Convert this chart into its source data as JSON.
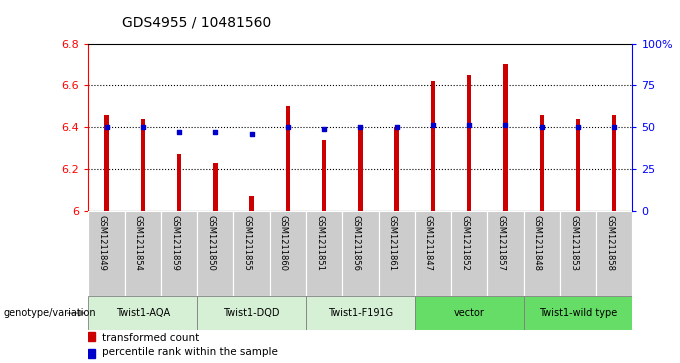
{
  "title": "GDS4955 / 10481560",
  "samples": [
    "GSM1211849",
    "GSM1211854",
    "GSM1211859",
    "GSM1211850",
    "GSM1211855",
    "GSM1211860",
    "GSM1211851",
    "GSM1211856",
    "GSM1211861",
    "GSM1211847",
    "GSM1211852",
    "GSM1211857",
    "GSM1211848",
    "GSM1211853",
    "GSM1211858"
  ],
  "bar_values": [
    6.46,
    6.44,
    6.27,
    6.23,
    6.07,
    6.5,
    6.34,
    6.41,
    6.4,
    6.62,
    6.65,
    6.7,
    6.46,
    6.44,
    6.46
  ],
  "percentile_values": [
    50,
    50,
    47,
    47,
    46,
    50,
    49,
    50,
    50,
    51,
    51,
    51,
    50,
    50,
    50
  ],
  "ylim_left": [
    6.0,
    6.8
  ],
  "ylim_right": [
    0,
    100
  ],
  "yticks_left": [
    6.0,
    6.2,
    6.4,
    6.6,
    6.8
  ],
  "ytick_labels_left": [
    "6",
    "6.2",
    "6.4",
    "6.6",
    "6.8"
  ],
  "yticks_right": [
    0,
    25,
    50,
    75,
    100
  ],
  "ytick_labels_right": [
    "0",
    "25",
    "50",
    "75",
    "100%"
  ],
  "bar_color": "#CC0000",
  "percentile_color": "#0000CC",
  "groups": [
    {
      "label": "Twist1-AQA",
      "start": 0,
      "end": 2,
      "color": "#d5f0d5"
    },
    {
      "label": "Twist1-DQD",
      "start": 3,
      "end": 5,
      "color": "#d5f0d5"
    },
    {
      "label": "Twist1-F191G",
      "start": 6,
      "end": 8,
      "color": "#d5f0d5"
    },
    {
      "label": "vector",
      "start": 9,
      "end": 11,
      "color": "#66dd66"
    },
    {
      "label": "Twist1-wild type",
      "start": 12,
      "end": 14,
      "color": "#66dd66"
    }
  ],
  "xlabel_label": "genotype/variation",
  "legend_bar_label": "transformed count",
  "legend_percentile_label": "percentile rank within the sample",
  "sample_bg_color": "#cccccc",
  "bar_width": 0.12
}
